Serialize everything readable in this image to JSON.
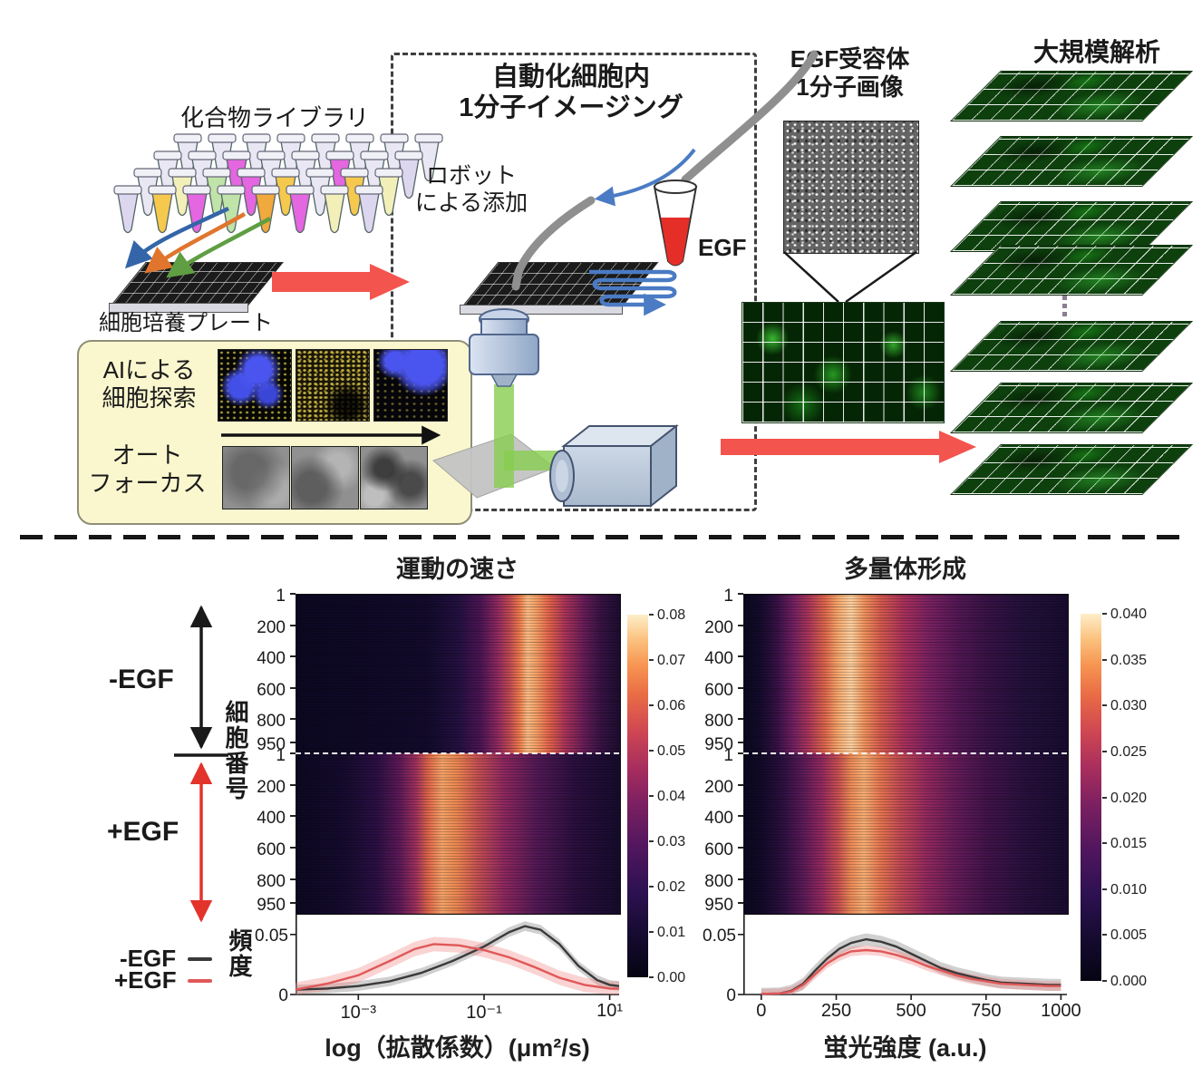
{
  "diagram": {
    "compound_library": "化合物ライブラリ",
    "cell_plate": "細胞培養プレート",
    "box_title_1": "自動化細胞内",
    "box_title_2": "1分子イメージング",
    "robot_1": "ロボット",
    "robot_2": "による添加",
    "egf": "EGF",
    "ai_1": "AIによる",
    "ai_2": "細胞探索",
    "af_1": "オート",
    "af_2": "フォーカス",
    "receptor_1": "EGF受容体",
    "receptor_2": "1分子画像",
    "large_scale": "大規模解析",
    "plane_count": 7,
    "tube_rows": [
      [
        "#e9e7f3",
        "#e9e7f3",
        "#e9e7f3",
        "#e9e7f3",
        "#e9e7f3",
        "#e9e7f3",
        "#e9e7f3",
        "#e9e7f3"
      ],
      [
        "#e9e7f3",
        "#e9e7f3",
        "#e466e0",
        "#e9e7f3",
        "#e9e7f3",
        "#e466e0",
        "#e9e7f3",
        "#dcd6ee"
      ],
      [
        "#e9e7f3",
        "#f2efb9",
        "#bfe3a8",
        "#e466e0",
        "#f5c84e",
        "#e9e7f3",
        "#f5c84e",
        "#f2efb9"
      ],
      [
        "#dcd6ee",
        "#f5c84e",
        "#e466e0",
        "#bfe3a8",
        "#f0a93c",
        "#e466e0",
        "#f2efb9",
        "#dcd6ee"
      ]
    ]
  },
  "annotations": {
    "minus_egf": "-EGF",
    "plus_egf": "+EGF",
    "cell_number_label": "細胞番号",
    "frequency_label": "頻度",
    "legend": [
      {
        "label": "-EGF",
        "color": "#3a3a3a"
      },
      {
        "label": "+EGF",
        "color": "#e05858"
      }
    ]
  },
  "chart_data": [
    {
      "type": "heatmap+line",
      "title": "運動の速さ",
      "xlabel": "log（拡散係数）(μm²/s)",
      "x_scale": "log10",
      "xlim": [
        -4,
        1.15
      ],
      "xticks": [
        {
          "label": "10⁻³",
          "x": -3
        },
        {
          "label": "10⁻¹",
          "x": -1
        },
        {
          "label": "10¹",
          "x": 1
        }
      ],
      "heatmap": {
        "ylabel": "細胞番号",
        "divider": "white-dashed",
        "groups": [
          {
            "name": "-EGF",
            "yticks": [
              1,
              200,
              400,
              600,
              800,
              950
            ],
            "n_rows": 1000,
            "band_center_log10": -0.4,
            "band_desc": "bright band at fast diffusion ~0.1-1 um2/s"
          },
          {
            "name": "+EGF",
            "yticks": [
              1,
              200,
              400,
              600,
              800,
              950
            ],
            "n_rows": 1000,
            "band_center_log10": -1.9,
            "band_desc": "bright band shifted to slower diffusion ~0.01 um2/s"
          }
        ],
        "colorbar_ticks": [
          "0.08",
          "0.07",
          "0.06",
          "0.05",
          "0.04",
          "0.03",
          "0.02",
          "0.01",
          "0.00"
        ]
      },
      "line": {
        "ylabel": "頻度",
        "ylim": [
          0,
          0.065
        ],
        "yticks": [
          {
            "label": "0.05",
            "v": 0.05
          },
          {
            "label": "0",
            "v": 0
          }
        ],
        "series": [
          {
            "name": "-EGF",
            "color": "#3a3a3a",
            "band_color": "rgba(120,120,120,0.35)",
            "band": 0.004,
            "points": [
              [
                -4,
                0.004
              ],
              [
                -3.5,
                0.005
              ],
              [
                -3,
                0.007
              ],
              [
                -2.5,
                0.011
              ],
              [
                -2,
                0.018
              ],
              [
                -1.5,
                0.028
              ],
              [
                -1,
                0.04
              ],
              [
                -0.6,
                0.052
              ],
              [
                -0.35,
                0.057
              ],
              [
                -0.1,
                0.054
              ],
              [
                0.2,
                0.042
              ],
              [
                0.5,
                0.024
              ],
              [
                0.8,
                0.012
              ],
              [
                1,
                0.008
              ],
              [
                1.15,
                0.007
              ]
            ]
          },
          {
            "name": "+EGF",
            "color": "#e05858",
            "band_color": "rgba(240,130,130,0.35)",
            "band": 0.006,
            "points": [
              [
                -4,
                0.004
              ],
              [
                -3.5,
                0.009
              ],
              [
                -3,
                0.016
              ],
              [
                -2.5,
                0.028
              ],
              [
                -2.1,
                0.038
              ],
              [
                -1.8,
                0.042
              ],
              [
                -1.4,
                0.041
              ],
              [
                -1,
                0.037
              ],
              [
                -0.6,
                0.031
              ],
              [
                -0.2,
                0.023
              ],
              [
                0.2,
                0.014
              ],
              [
                0.6,
                0.008
              ],
              [
                1,
                0.005
              ],
              [
                1.15,
                0.005
              ]
            ]
          }
        ]
      }
    },
    {
      "type": "heatmap+line",
      "title": "多量体形成",
      "xlabel": "蛍光強度 (a.u.)",
      "x_scale": "linear",
      "xlim": [
        -60,
        1020
      ],
      "xticks": [
        {
          "label": "0",
          "x": 0
        },
        {
          "label": "250",
          "x": 250
        },
        {
          "label": "500",
          "x": 500
        },
        {
          "label": "750",
          "x": 750
        },
        {
          "label": "1000",
          "x": 1000
        }
      ],
      "heatmap": {
        "ylabel": "細胞番号",
        "divider": "white-dashed",
        "groups": [
          {
            "name": "-EGF",
            "yticks": [
              1,
              200,
              400,
              600,
              800,
              950
            ],
            "n_rows": 1000,
            "band_center_x": 300,
            "band_desc": "bright band ~150-550 a.u."
          },
          {
            "name": "+EGF",
            "yticks": [
              1,
              200,
              400,
              600,
              800,
              950
            ],
            "n_rows": 1000,
            "band_center_x": 340,
            "band_desc": "slightly dimmer band ~200-600 a.u."
          }
        ],
        "colorbar_ticks": [
          "0.040",
          "0.035",
          "0.030",
          "0.025",
          "0.020",
          "0.015",
          "0.010",
          "0.005",
          "0.000"
        ]
      },
      "line": {
        "ylabel": "頻度",
        "ylim": [
          0,
          0.065
        ],
        "yticks": [
          {
            "label": "0.05",
            "v": 0.05
          },
          {
            "label": "0",
            "v": 0
          }
        ],
        "series": [
          {
            "name": "-EGF",
            "color": "#3a3a3a",
            "band_color": "rgba(120,120,120,0.35)",
            "band": 0.005,
            "points": [
              [
                0,
                0.0005
              ],
              [
                60,
                0.0008
              ],
              [
                100,
                0.003
              ],
              [
                140,
                0.009
              ],
              [
                180,
                0.02
              ],
              [
                220,
                0.03
              ],
              [
                260,
                0.038
              ],
              [
                300,
                0.043
              ],
              [
                350,
                0.046
              ],
              [
                400,
                0.044
              ],
              [
                450,
                0.04
              ],
              [
                500,
                0.034
              ],
              [
                550,
                0.028
              ],
              [
                600,
                0.022
              ],
              [
                650,
                0.018
              ],
              [
                700,
                0.015
              ],
              [
                750,
                0.012
              ],
              [
                800,
                0.01
              ],
              [
                880,
                0.009
              ],
              [
                960,
                0.008
              ],
              [
                1000,
                0.008
              ]
            ]
          },
          {
            "name": "+EGF",
            "color": "#e05858",
            "band_color": "rgba(240,130,130,0.35)",
            "band": 0.004,
            "points": [
              [
                0,
                0.0005
              ],
              [
                60,
                0.0008
              ],
              [
                100,
                0.0025
              ],
              [
                140,
                0.008
              ],
              [
                180,
                0.017
              ],
              [
                220,
                0.026
              ],
              [
                260,
                0.032
              ],
              [
                300,
                0.036
              ],
              [
                350,
                0.037
              ],
              [
                400,
                0.036
              ],
              [
                450,
                0.033
              ],
              [
                500,
                0.029
              ],
              [
                550,
                0.024
              ],
              [
                600,
                0.02
              ],
              [
                650,
                0.016
              ],
              [
                700,
                0.013
              ],
              [
                750,
                0.011
              ],
              [
                800,
                0.009
              ],
              [
                880,
                0.008
              ],
              [
                960,
                0.007
              ],
              [
                1000,
                0.007
              ]
            ]
          }
        ]
      }
    }
  ]
}
